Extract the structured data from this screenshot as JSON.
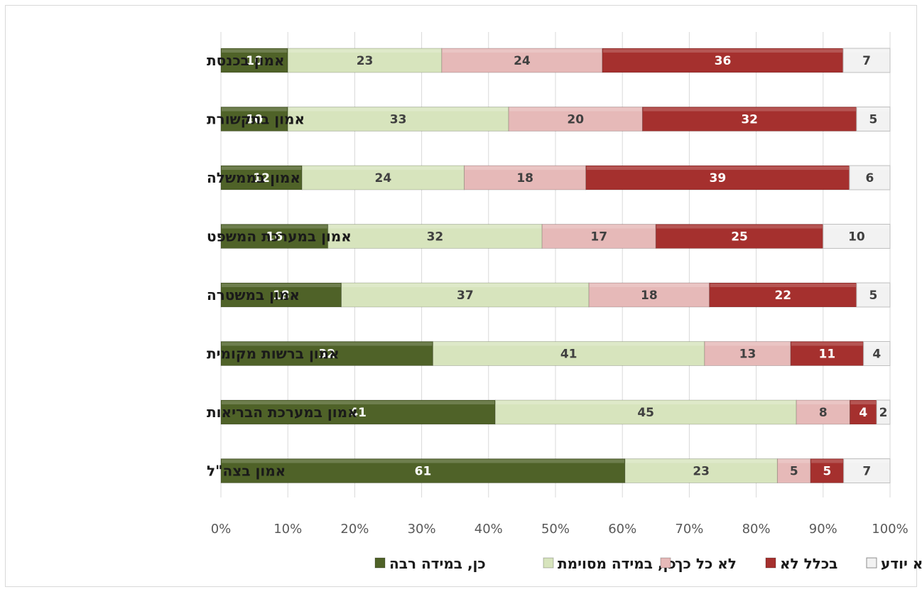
{
  "chart_data": {
    "type": "bar",
    "orientation": "horizontal",
    "stacked": "percent",
    "categories": [
      "אמון בכנסת",
      "אמון בתקשורת",
      "אמון בממשלה",
      "אמון במערכת המשפט",
      "אמון במשטרה",
      "אמון ברשות מקומית",
      "אמון במערכת הבריאות",
      "אמון בצה\"ל"
    ],
    "series": [
      {
        "name": "כן, במידה רבה",
        "color": "#4f6228",
        "label_color": "#ffffff",
        "values": [
          10,
          10,
          12,
          16,
          18,
          32,
          41,
          61
        ]
      },
      {
        "name": "כן, במידה מסוימת",
        "color": "#d7e4bd",
        "label_color": "#404040",
        "values": [
          23,
          33,
          24,
          32,
          37,
          41,
          45,
          23
        ]
      },
      {
        "name": "לא כל כך",
        "color": "#e6b9b8",
        "label_color": "#404040",
        "values": [
          24,
          20,
          18,
          17,
          18,
          13,
          8,
          5
        ]
      },
      {
        "name": "בכלל לא",
        "color": "#a5302e",
        "label_color": "#ffffff",
        "values": [
          36,
          32,
          39,
          25,
          22,
          11,
          4,
          5
        ]
      },
      {
        "name": "לא יודע",
        "color": "#f2f2f2",
        "label_color": "#404040",
        "values": [
          7,
          5,
          6,
          10,
          5,
          4,
          2,
          7
        ]
      }
    ],
    "x_ticks": [
      "0%",
      "10%",
      "20%",
      "30%",
      "40%",
      "50%",
      "60%",
      "70%",
      "80%",
      "90%",
      "100%"
    ],
    "xlim": [
      0,
      100
    ],
    "grid": true,
    "legend_position": "bottom"
  }
}
